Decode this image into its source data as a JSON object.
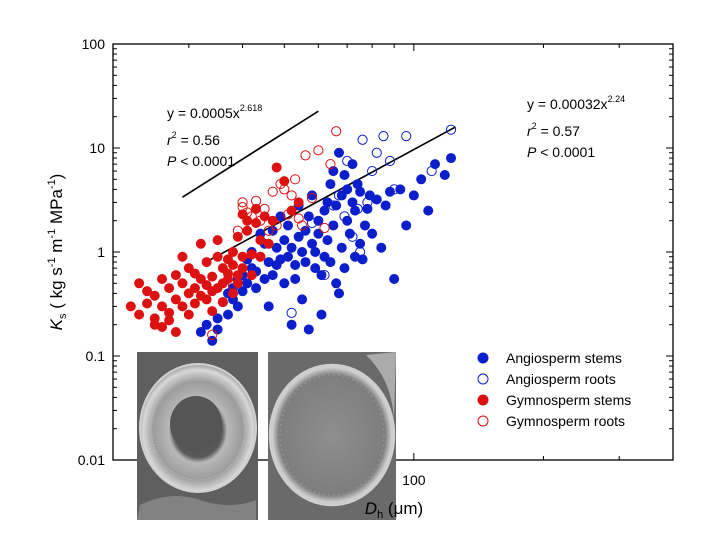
{
  "chart_data": {
    "type": "scatter",
    "x_scale": "log",
    "y_scale": "log",
    "xlim": [
      20,
      400
    ],
    "ylim": [
      0.01,
      100
    ],
    "x_tick_labels": [
      {
        "value": 100,
        "label": "100"
      }
    ],
    "y_tick_labels": [
      {
        "value": 0.01,
        "label": "0.01"
      },
      {
        "value": 0.1,
        "label": "0.1"
      },
      {
        "value": 1,
        "label": "1"
      },
      {
        "value": 10,
        "label": "10"
      },
      {
        "value": 100,
        "label": "100"
      }
    ],
    "ylabel": {
      "main": "K",
      "sub": "s",
      "unit_parts": [
        " ( kg s",
        "-1",
        " m",
        "-1",
        " MPa",
        "-1",
        ")"
      ]
    },
    "xlabel": {
      "main": "D",
      "sub": "h",
      "unit": " (μm)"
    },
    "grid": false,
    "legend_placement": "bottom-right",
    "colors": {
      "angiosperm": "#0a1ecb",
      "gymnosperm": "#dd1111"
    },
    "legend": [
      {
        "label": "Angiosperm stems",
        "color": "#0a1ecb",
        "filled": true
      },
      {
        "label": "Angiosperm roots",
        "color": "#0a1ecb",
        "filled": false
      },
      {
        "label": "Gymnosperm stems",
        "color": "#dd1111",
        "filled": true
      },
      {
        "label": "Gymnosperm roots",
        "color": "#dd1111",
        "filled": false
      }
    ],
    "fits": [
      {
        "label": "Gymnosperm fit",
        "coef": 0.0005,
        "exp": 2.618,
        "x_range": [
          29,
          60
        ],
        "eq_prefix": "y = 0.0005x",
        "eq_exp": "2.618",
        "r_label": "r",
        "r_sup": "2",
        "r_value": " = 0.56",
        "p_label": "P",
        "p_value": " < 0.0001"
      },
      {
        "label": "Angiosperm fit",
        "coef": 0.00032,
        "exp": 2.24,
        "x_range": [
          33,
          125
        ],
        "eq_prefix": "y = 0.00032x",
        "eq_exp": "2.24",
        "r_label": "r",
        "r_sup": "2",
        "r_value": " = 0.57",
        "p_label": "P",
        "p_value": " < 0.0001"
      }
    ],
    "series": [
      {
        "name": "Angiosperm stems",
        "color": "#0a1ecb",
        "filled": true,
        "points": [
          [
            32,
            0.17
          ],
          [
            33,
            0.2
          ],
          [
            34,
            0.14
          ],
          [
            35,
            0.23
          ],
          [
            35,
            0.18
          ],
          [
            36,
            0.33
          ],
          [
            37,
            0.25
          ],
          [
            37,
            0.4
          ],
          [
            38,
            0.45
          ],
          [
            38,
            0.35
          ],
          [
            39,
            0.3
          ],
          [
            39,
            0.55
          ],
          [
            40,
            0.6
          ],
          [
            40,
            0.42
          ],
          [
            41,
            0.5
          ],
          [
            41,
            0.85
          ],
          [
            42,
            0.7
          ],
          [
            42,
            1.0
          ],
          [
            43,
            0.45
          ],
          [
            43,
            0.65
          ],
          [
            44,
            1.5
          ],
          [
            44,
            0.9
          ],
          [
            45,
            0.55
          ],
          [
            45,
            1.2
          ],
          [
            46,
            0.8
          ],
          [
            46,
            0.3
          ],
          [
            47,
            1.6
          ],
          [
            47,
            0.6
          ],
          [
            48,
            1.1
          ],
          [
            48,
            0.75
          ],
          [
            49,
            0.85
          ],
          [
            49,
            2.2
          ],
          [
            50,
            1.3
          ],
          [
            50,
            0.5
          ],
          [
            51,
            0.9
          ],
          [
            51,
            1.8
          ],
          [
            52,
            0.2
          ],
          [
            52,
            1.1
          ],
          [
            53,
            0.55
          ],
          [
            53,
            0.75
          ],
          [
            54,
            2.8
          ],
          [
            54,
            1.4
          ],
          [
            55,
            1.0
          ],
          [
            55,
            0.35
          ],
          [
            56,
            0.8
          ],
          [
            56,
            1.6
          ],
          [
            57,
            2.2
          ],
          [
            57,
            0.18
          ],
          [
            58,
            1.2
          ],
          [
            58,
            3.5
          ],
          [
            59,
            0.7
          ],
          [
            59,
            1.0
          ],
          [
            60,
            1.5
          ],
          [
            60,
            2.0
          ],
          [
            61,
            0.6
          ],
          [
            61,
            0.25
          ],
          [
            62,
            2.5
          ],
          [
            62,
            0.9
          ],
          [
            63,
            3.0
          ],
          [
            63,
            1.3
          ],
          [
            64,
            4.5
          ],
          [
            64,
            0.8
          ],
          [
            65,
            1.8
          ],
          [
            65,
            6.0
          ],
          [
            66,
            2.8
          ],
          [
            66,
            0.5
          ],
          [
            67,
            0.4
          ],
          [
            67,
            9.0
          ],
          [
            68,
            3.5
          ],
          [
            68,
            1.1
          ],
          [
            69,
            5.5
          ],
          [
            69,
            0.7
          ],
          [
            70,
            2.0
          ],
          [
            70,
            4.0
          ],
          [
            71,
            1.5
          ],
          [
            72,
            7.0
          ],
          [
            72,
            3.0
          ],
          [
            73,
            2.5
          ],
          [
            73,
            0.9
          ],
          [
            74,
            4.5
          ],
          [
            75,
            1.2
          ],
          [
            75,
            3.8
          ],
          [
            76,
            0.85
          ],
          [
            77,
            1.8
          ],
          [
            78,
            2.6
          ],
          [
            79,
            3.5
          ],
          [
            80,
            1.5
          ],
          [
            82,
            3.2
          ],
          [
            84,
            1.1
          ],
          [
            86,
            2.8
          ],
          [
            88,
            3.8
          ],
          [
            90,
            0.55
          ],
          [
            93,
            4.0
          ],
          [
            96,
            1.8
          ],
          [
            100,
            3.5
          ],
          [
            104,
            5.0
          ],
          [
            108,
            2.5
          ],
          [
            112,
            7.0
          ],
          [
            118,
            5.5
          ],
          [
            122,
            8.0
          ]
        ]
      },
      {
        "name": "Angiosperm roots",
        "color": "#0a1ecb",
        "filled": false,
        "points": [
          [
            52,
            0.26
          ],
          [
            58,
            1.9
          ],
          [
            62,
            0.6
          ],
          [
            65,
            2.8
          ],
          [
            67,
            3.5
          ],
          [
            69,
            2.2
          ],
          [
            70,
            7.5
          ],
          [
            72,
            1.4
          ],
          [
            74,
            2.6
          ],
          [
            75,
            1.0
          ],
          [
            76,
            12.0
          ],
          [
            78,
            3.0
          ],
          [
            80,
            6.0
          ],
          [
            82,
            9.0
          ],
          [
            85,
            13.0
          ],
          [
            88,
            7.5
          ],
          [
            90,
            4.0
          ],
          [
            96,
            13.0
          ],
          [
            110,
            6.0
          ],
          [
            122,
            15.0
          ]
        ]
      },
      {
        "name": "Gymnosperm stems",
        "color": "#dd1111",
        "filled": true,
        "points": [
          [
            22,
            0.3
          ],
          [
            23,
            0.25
          ],
          [
            23,
            0.5
          ],
          [
            24,
            0.32
          ],
          [
            24,
            0.42
          ],
          [
            25,
            0.23
          ],
          [
            25,
            0.2
          ],
          [
            25,
            0.38
          ],
          [
            26,
            0.3
          ],
          [
            26,
            0.55
          ],
          [
            26,
            0.19
          ],
          [
            27,
            0.22
          ],
          [
            27,
            0.45
          ],
          [
            27,
            0.26
          ],
          [
            28,
            0.35
          ],
          [
            28,
            0.6
          ],
          [
            28,
            0.17
          ],
          [
            29,
            0.5
          ],
          [
            29,
            0.3
          ],
          [
            29,
            0.9
          ],
          [
            30,
            0.4
          ],
          [
            30,
            0.7
          ],
          [
            30,
            0.25
          ],
          [
            31,
            0.32
          ],
          [
            31,
            0.45
          ],
          [
            31,
            0.62
          ],
          [
            32,
            0.55
          ],
          [
            32,
            1.2
          ],
          [
            32,
            0.38
          ],
          [
            33,
            0.48
          ],
          [
            33,
            0.8
          ],
          [
            33,
            0.35
          ],
          [
            34,
            0.58
          ],
          [
            34,
            0.42
          ],
          [
            34,
            0.27
          ],
          [
            35,
            0.9
          ],
          [
            35,
            1.3
          ],
          [
            35,
            0.45
          ],
          [
            36,
            0.5
          ],
          [
            36,
            0.7
          ],
          [
            36,
            0.33
          ],
          [
            37,
            0.55
          ],
          [
            37,
            0.62
          ],
          [
            37,
            0.85
          ],
          [
            38,
            0.4
          ],
          [
            38,
            0.75
          ],
          [
            38,
            1.0
          ],
          [
            39,
            0.6
          ],
          [
            39,
            0.5
          ],
          [
            39,
            1.4
          ],
          [
            40,
            2.3
          ],
          [
            40,
            0.9
          ],
          [
            40,
            0.7
          ],
          [
            41,
            1.6
          ],
          [
            41,
            2.0
          ],
          [
            42,
            0.95
          ],
          [
            42,
            0.6
          ],
          [
            43,
            1.9
          ],
          [
            43,
            2.6
          ],
          [
            44,
            1.3
          ],
          [
            44,
            0.9
          ],
          [
            45,
            2.2
          ],
          [
            46,
            1.2
          ],
          [
            47,
            2.0
          ],
          [
            48,
            6.5
          ],
          [
            50,
            4.8
          ],
          [
            52,
            2.5
          ],
          [
            54,
            3.0
          ]
        ]
      },
      {
        "name": "Gymnosperm roots",
        "color": "#dd1111",
        "filled": false,
        "points": [
          [
            34,
            0.16
          ],
          [
            38,
            0.48
          ],
          [
            39,
            1.6
          ],
          [
            40,
            2.7
          ],
          [
            40,
            3.0
          ],
          [
            41,
            2.4
          ],
          [
            42,
            2.2
          ],
          [
            43,
            3.1
          ],
          [
            44,
            2.0
          ],
          [
            45,
            2.6
          ],
          [
            46,
            1.6
          ],
          [
            47,
            3.8
          ],
          [
            48,
            1.8
          ],
          [
            49,
            4.5
          ],
          [
            50,
            4.0
          ],
          [
            51,
            2.3
          ],
          [
            52,
            3.5
          ],
          [
            53,
            5.0
          ],
          [
            54,
            2.1
          ],
          [
            55,
            1.8
          ],
          [
            56,
            8.5
          ],
          [
            58,
            3.3
          ],
          [
            60,
            9.5
          ],
          [
            62,
            1.7
          ],
          [
            64,
            7.0
          ],
          [
            66,
            14.5
          ]
        ]
      }
    ],
    "insets": [
      {
        "name": "stem-pit-micrograph"
      },
      {
        "name": "root-pit-micrograph"
      }
    ]
  }
}
